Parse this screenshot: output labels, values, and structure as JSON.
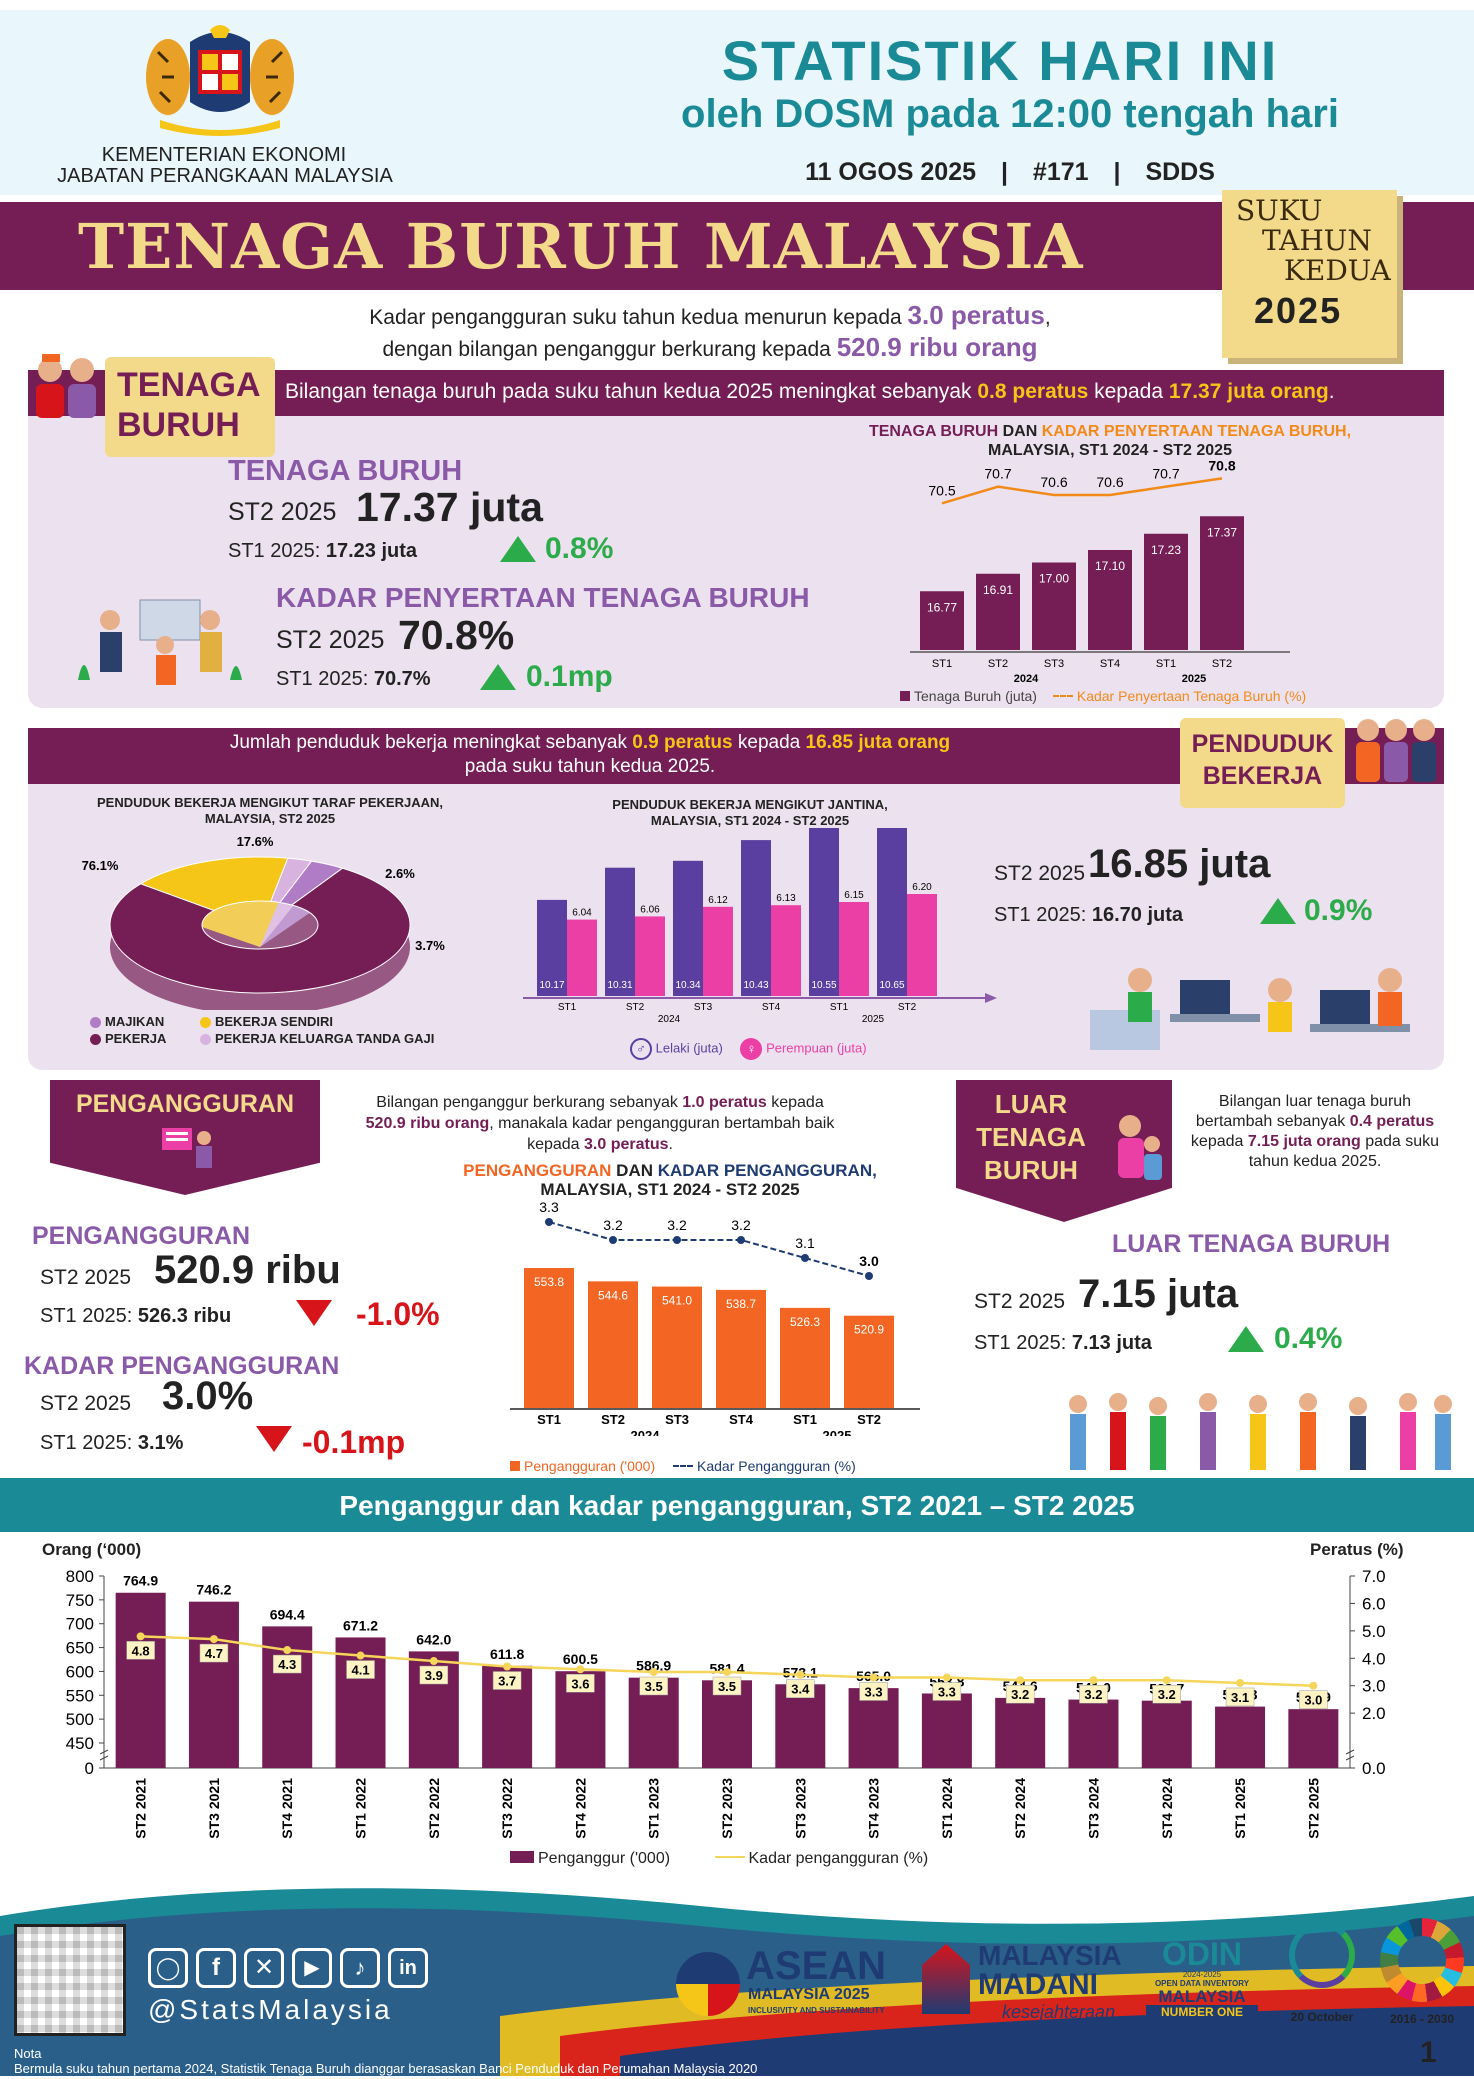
{
  "header": {
    "ministry": "KEMENTERIAN EKONOMI",
    "department": "JABATAN PERANGKAAN MALAYSIA",
    "title": "STATISTIK HARI INI",
    "subtitle": "oleh DOSM pada 12:00 tengah hari",
    "date": "11 OGOS 2025",
    "issue": "#171",
    "standard": "SDDS",
    "sep": "|"
  },
  "banner": {
    "title": "TENAGA BURUH MALAYSIA",
    "quarter_l1": "SUKU",
    "quarter_l2": "TAHUN",
    "quarter_l3": "KEDUA",
    "year": "2025"
  },
  "intro": {
    "l1a": "Kadar pengangguran suku tahun kedua menurun kepada ",
    "l1b": "3.0 peratus",
    "l1c": ",",
    "l2a": "dengan bilangan penganggur berkurang kepada ",
    "l2b": "520.9 ribu orang"
  },
  "labour_force": {
    "tag_l1": "TENAGA",
    "tag_l2": "BURUH",
    "band_a": "Bilangan tenaga buruh pada suku tahun kedua 2025 meningkat sebanyak ",
    "band_b": "0.8 peratus",
    "band_c": " kepada ",
    "band_d": "17.37 juta orang",
    "band_e": ".",
    "lf_title": "TENAGA BURUH",
    "lf_q": "ST2 2025",
    "lf_value": "17.37 juta",
    "lf_prev_label": "ST1 2025: ",
    "lf_prev": "17.23 juta",
    "lf_change": "0.8%",
    "lfpr_title": "KADAR PENYERTAAN TENAGA BURUH",
    "lfpr_q": "ST2 2025",
    "lfpr_value": "70.8%",
    "lfpr_prev_label": "ST1 2025: ",
    "lfpr_prev": "70.7%",
    "lfpr_change": "0.1mp",
    "chart_title_a": "TENAGA BURUH",
    "chart_title_b": " DAN ",
    "chart_title_c": "KADAR PENYERTAAN TENAGA BURUH,",
    "chart_title_2": "MALAYSIA, ST1 2024 - ST2 2025",
    "legend_bar": "Tenaga Buruh (juta)",
    "legend_line": "Kadar Penyertaan Tenaga Buruh (%)"
  },
  "employed": {
    "band_a": "Jumlah penduduk bekerja meningkat sebanyak ",
    "band_b": "0.9 peratus",
    "band_c": " kepada ",
    "band_d": "16.85 juta orang",
    "band_l2": "pada suku tahun kedua 2025.",
    "tag_l1": "PENDUDUK",
    "tag_l2": "BEKERJA",
    "pie_title_1": "PENDUDUK BEKERJA MENGIKUT TARAF PEKERJAAN,",
    "pie_title_2": "MALAYSIA, ST2 2025",
    "sex_title_1": "PENDUDUK BEKERJA MENGIKUT JANTINA,",
    "sex_title_2": "MALAYSIA, ST1 2024 - ST2 2025",
    "emp_q": "ST2 2025",
    "emp_value": "16.85 juta",
    "emp_prev_label": "ST1 2025: ",
    "emp_prev": "16.70 juta",
    "emp_change": "0.9%",
    "legend_male": "Lelaki (juta)",
    "legend_female": "Perempuan (juta)"
  },
  "unemployment": {
    "tag": "PENGANGGURAN",
    "desc_1a": "Bilangan penganggur berkurang sebanyak ",
    "desc_1b": "1.0 peratus",
    "desc_1c": " kepada",
    "desc_2a": "520.9 ribu orang",
    "desc_2b": ", manakala kadar pengangguran bertambah baik",
    "desc_3a": "kepada ",
    "desc_3b": "3.0 peratus",
    "desc_3c": ".",
    "u_title": "PENGANGGURAN",
    "u_q": "ST2 2025",
    "u_value": "520.9 ribu",
    "u_prev_label": "ST1 2025: ",
    "u_prev": "526.3 ribu",
    "u_change": "-1.0%",
    "ur_title": "KADAR PENGANGGURAN",
    "ur_q": "ST2 2025",
    "ur_value": "3.0%",
    "ur_prev_label": "ST1 2025: ",
    "ur_prev": "3.1%",
    "ur_change": "-0.1mp",
    "chart_title_a": "PENGANGGURAN",
    "chart_title_b": " DAN ",
    "chart_title_c": "KADAR PENGANGGURAN,",
    "chart_title_2": "MALAYSIA, ST1 2024  - ST2 2025",
    "legend_bar": "Pengangguran ('000)",
    "legend_line": "Kadar Pengangguran (%)"
  },
  "outside": {
    "tag_l1": "LUAR",
    "tag_l2": "TENAGA",
    "tag_l3": "BURUH",
    "desc_1": "Bilangan luar tenaga buruh",
    "desc_2a": "bertambah sebanyak ",
    "desc_2b": "0.4 peratus",
    "desc_3a": "kepada ",
    "desc_3b": "7.15 juta orang",
    "desc_3c": " pada suku",
    "desc_4": "tahun kedua 2025.",
    "o_title": "LUAR TENAGA BURUH",
    "o_q": "ST2 2025",
    "o_value": "7.15 juta",
    "o_prev_label": "ST1 2025: ",
    "o_prev": "7.13 juta",
    "o_change": "0.4%"
  },
  "long_chart": {
    "band": "Penganggur dan kadar pengangguran, ST2 2021 – ST2 2025",
    "left_axis": "Orang (‘000)",
    "right_axis": "Peratus (%)",
    "legend_bar": "Penganggur ('000)",
    "legend_line": "Kadar pengangguran (%)"
  },
  "footer": {
    "handle": "@StatsMalaysia",
    "asean_1": "ASEAN",
    "asean_2": "MALAYSIA 2025",
    "asean_3": "INCLUSIVITY AND SUSTAINABILITY",
    "madani_1": "MALAYSIA",
    "madani_2": "MADANI",
    "madani_3": "kesejahteraan",
    "odin_1": "ODIN",
    "odin_2": "OPEN DATA INVENTORY",
    "odin_3": "MALAYSIA",
    "odin_4": "NUMBER ONE",
    "odin_5": "IN THE WORLD",
    "odin_6": "2024-2025",
    "wsd_date": "20 October",
    "sdg_years": "2016 - 2030",
    "note_title": "Nota",
    "note": "Bermula suku tahun pertama 2024, Statistik Tenaga Buruh dianggar berasaskan Banci Penduduk dan Perumahan Malaysia 2020",
    "page": "1"
  },
  "colors": {
    "purple": "#741e55",
    "lavender": "#8a5aa8",
    "gold": "#f3d98a",
    "teal": "#1f8fa3",
    "orange": "#f26522",
    "navy": "#1f3b73",
    "male": "#5b3fa0",
    "female": "#ec3fa6"
  },
  "chart_data": [
    {
      "id": "labour_force",
      "type": "bar",
      "categories": [
        "ST1",
        "ST2",
        "ST3",
        "ST4",
        "ST1",
        "ST2"
      ],
      "groups": [
        "2024",
        "2025"
      ],
      "series": [
        {
          "name": "Tenaga Buruh (juta)",
          "values": [
            16.77,
            16.91,
            17.0,
            17.1,
            17.23,
            17.37
          ]
        },
        {
          "name": "Kadar Penyertaan Tenaga Buruh (%)",
          "type": "line",
          "values": [
            70.5,
            70.7,
            70.6,
            70.6,
            70.7,
            70.8
          ]
        }
      ]
    },
    {
      "id": "employment_status",
      "type": "pie",
      "labels": [
        "MAJIKAN",
        "PEKERJA",
        "BEKERJA SENDIRI",
        "PEKERJA KELUARGA TANDA GAJI"
      ],
      "values": [
        3.7,
        76.1,
        17.6,
        2.6
      ],
      "colors": [
        "#b07cc6",
        "#741e55",
        "#f5c518",
        "#d9b3e0"
      ]
    },
    {
      "id": "employed_by_sex",
      "type": "bar",
      "categories": [
        "ST1",
        "ST2",
        "ST3",
        "ST4",
        "ST1",
        "ST2"
      ],
      "groups": [
        "2024",
        "2025"
      ],
      "series": [
        {
          "name": "Lelaki (juta)",
          "values": [
            10.17,
            10.31,
            10.34,
            10.43,
            10.55,
            10.65
          ]
        },
        {
          "name": "Perempuan (juta)",
          "values": [
            6.04,
            6.06,
            6.12,
            6.13,
            6.15,
            6.2
          ]
        }
      ]
    },
    {
      "id": "unemployment",
      "type": "bar",
      "categories": [
        "ST1",
        "ST2",
        "ST3",
        "ST4",
        "ST1",
        "ST2"
      ],
      "groups": [
        "2024",
        "2025"
      ],
      "series": [
        {
          "name": "Pengangguran ('000)",
          "values": [
            553.8,
            544.6,
            541.0,
            538.7,
            526.3,
            520.9
          ]
        },
        {
          "name": "Kadar Pengangguran (%)",
          "type": "line",
          "values": [
            3.3,
            3.2,
            3.2,
            3.2,
            3.1,
            3.0
          ]
        }
      ]
    },
    {
      "id": "long_unemployment",
      "type": "bar",
      "categories": [
        "ST2 2021",
        "ST3 2021",
        "ST4 2021",
        "ST1 2022",
        "ST2 2022",
        "ST3 2022",
        "ST4 2022",
        "ST1 2023",
        "ST2 2023",
        "ST3 2023",
        "ST4 2023",
        "ST1 2024",
        "ST2 2024",
        "ST3 2024",
        "ST4 2024",
        "ST1 2025",
        "ST2 2025"
      ],
      "series": [
        {
          "name": "Penganggur ('000)",
          "values": [
            764.9,
            746.2,
            694.4,
            671.2,
            642.0,
            611.8,
            600.5,
            586.9,
            581.4,
            573.1,
            565.0,
            553.8,
            544.6,
            541.0,
            538.7,
            526.3,
            520.9
          ]
        },
        {
          "name": "Kadar pengangguran (%)",
          "type": "line",
          "values": [
            4.8,
            4.7,
            4.3,
            4.1,
            3.9,
            3.7,
            3.6,
            3.5,
            3.5,
            3.4,
            3.3,
            3.3,
            3.2,
            3.2,
            3.2,
            3.1,
            3.0
          ]
        }
      ],
      "left_ticks": [
        "0",
        "450",
        "500",
        "550",
        "600",
        "650",
        "700",
        "750",
        "800"
      ],
      "right_ticks": [
        "0.0",
        "2.0",
        "3.0",
        "4.0",
        "5.0",
        "6.0",
        "7.0"
      ],
      "ylabel_left": "Orang (‘000)",
      "ylabel_right": "Peratus (%)"
    }
  ]
}
